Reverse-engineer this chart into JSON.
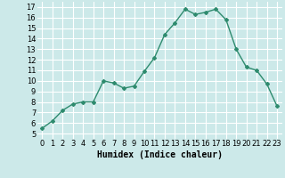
{
  "x": [
    0,
    1,
    2,
    3,
    4,
    5,
    6,
    7,
    8,
    9,
    10,
    11,
    12,
    13,
    14,
    15,
    16,
    17,
    18,
    19,
    20,
    21,
    22,
    23
  ],
  "y": [
    5.5,
    6.2,
    7.2,
    7.8,
    8.0,
    8.0,
    10.0,
    9.8,
    9.3,
    9.5,
    10.9,
    12.2,
    14.4,
    15.5,
    16.8,
    16.3,
    16.5,
    16.8,
    15.8,
    13.0,
    11.3,
    11.0,
    9.7,
    7.6
  ],
  "xlabel": "Humidex (Indice chaleur)",
  "xlim": [
    -0.5,
    23.5
  ],
  "ylim": [
    4.5,
    17.5
  ],
  "yticks": [
    5,
    6,
    7,
    8,
    9,
    10,
    11,
    12,
    13,
    14,
    15,
    16,
    17
  ],
  "xticks": [
    0,
    1,
    2,
    3,
    4,
    5,
    6,
    7,
    8,
    9,
    10,
    11,
    12,
    13,
    14,
    15,
    16,
    17,
    18,
    19,
    20,
    21,
    22,
    23
  ],
  "line_color": "#2e8b6e",
  "marker": "D",
  "marker_size": 2.0,
  "line_width": 1.0,
  "bg_color": "#cce9e9",
  "grid_color": "#ffffff",
  "tick_label_fontsize": 6.0,
  "xlabel_fontsize": 7.0
}
